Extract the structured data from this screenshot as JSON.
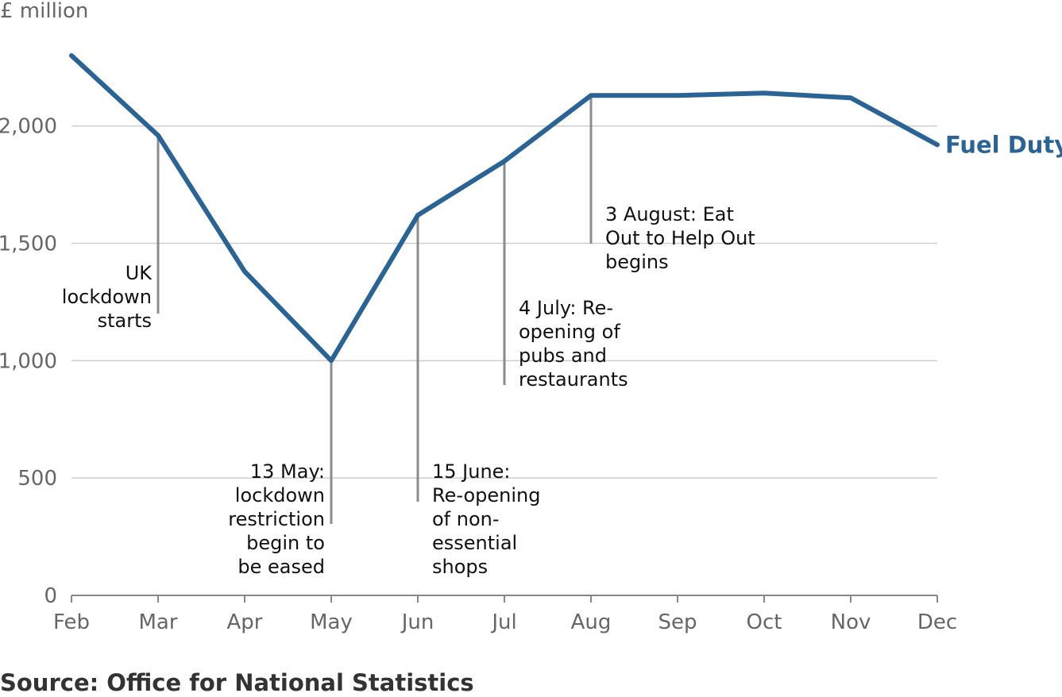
{
  "chart_data": {
    "type": "line",
    "unit_label": "£ million",
    "categories": [
      "Feb",
      "Mar",
      "Apr",
      "May",
      "Jun",
      "Jul",
      "Aug",
      "Sep",
      "Oct",
      "Nov",
      "Dec"
    ],
    "series": [
      {
        "name": "Fuel Duty",
        "color": "#2a6496",
        "values": [
          2300,
          1960,
          1380,
          1000,
          1620,
          1850,
          2130,
          2130,
          2140,
          2120,
          1920
        ]
      }
    ],
    "ylim": [
      0,
      2300
    ],
    "yticks": [
      0,
      500,
      1000,
      1500,
      2000
    ],
    "ytick_labels": [
      "0",
      "500",
      "1,000",
      "1,500",
      "2,000"
    ],
    "grid": true,
    "annotations": [
      {
        "category": "Mar",
        "lines": [
          "UK",
          "lockdown",
          "starts"
        ],
        "align": "end"
      },
      {
        "category": "May",
        "lines": [
          "13 May:",
          "lockdown",
          "restriction",
          "begin to",
          "be eased"
        ],
        "align": "end"
      },
      {
        "category": "Jun",
        "lines": [
          "15 June:",
          "Re-opening",
          "of non-",
          "essential",
          "shops"
        ],
        "align": "start"
      },
      {
        "category": "Jul",
        "lines": [
          "4 July: Re-",
          "opening of",
          "pubs and",
          "restaurants"
        ],
        "align": "start"
      },
      {
        "category": "Aug",
        "lines": [
          "3 August: Eat",
          "Out to Help Out",
          "begins"
        ],
        "align": "start"
      }
    ]
  },
  "source": "Source: Office for National Statistics"
}
